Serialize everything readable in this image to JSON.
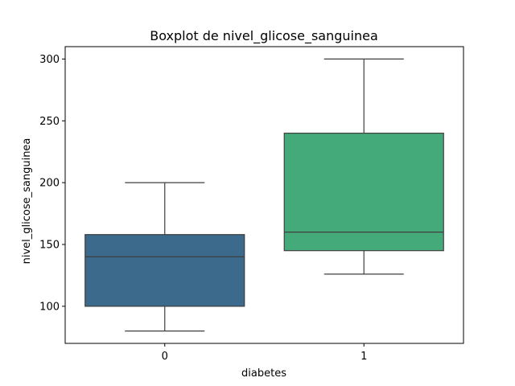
{
  "chart_data": {
    "type": "box",
    "title": "Boxplot de nivel_glicose_sanguinea",
    "xlabel": "diabetes",
    "ylabel": "nivel_glicose_sanguinea",
    "ylim": [
      70,
      310
    ],
    "yticks": [
      100,
      150,
      200,
      250,
      300
    ],
    "categories": [
      "0",
      "1"
    ],
    "boxes": [
      {
        "category": "0",
        "whisker_low": 80,
        "q1": 100,
        "median": 140,
        "q3": 158,
        "whisker_high": 200,
        "color": "#3b6a8c"
      },
      {
        "category": "1",
        "whisker_low": 126,
        "q1": 145,
        "median": 160,
        "q3": 240,
        "whisker_high": 300,
        "color": "#45aa79"
      }
    ],
    "grid": false,
    "legend": "none"
  }
}
